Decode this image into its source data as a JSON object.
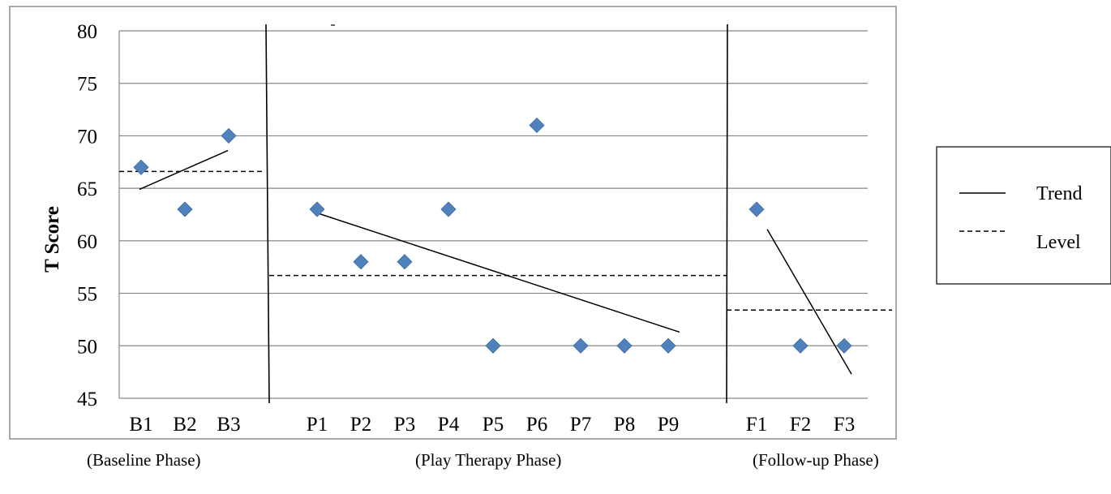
{
  "chart_data": {
    "type": "scatter",
    "ylabel": "T Score",
    "xlabel": "",
    "ylim": [
      45,
      80
    ],
    "yticks": [
      45,
      50,
      55,
      60,
      65,
      70,
      75,
      80
    ],
    "grid": true,
    "legend_position": "right",
    "categories": [
      "B1",
      "B2",
      "B3",
      "P1",
      "P2",
      "P3",
      "P4",
      "P5",
      "P6",
      "P7",
      "P8",
      "P9",
      "F1",
      "F2",
      "F3"
    ],
    "series": [
      {
        "marker": "diamond",
        "color": "#4F81BD",
        "points": [
          {
            "x": "B1",
            "y": 67
          },
          {
            "x": "B2",
            "y": 63
          },
          {
            "x": "B3",
            "y": 70
          },
          {
            "x": "P1",
            "y": 63
          },
          {
            "x": "P2",
            "y": 58
          },
          {
            "x": "P3",
            "y": 58
          },
          {
            "x": "P4",
            "y": 63
          },
          {
            "x": "P5",
            "y": 50
          },
          {
            "x": "P6",
            "y": 71
          },
          {
            "x": "P7",
            "y": 50
          },
          {
            "x": "P8",
            "y": 50
          },
          {
            "x": "P9",
            "y": 50
          },
          {
            "x": "F1",
            "y": 63
          },
          {
            "x": "F2",
            "y": 50
          },
          {
            "x": "F3",
            "y": 50
          }
        ]
      }
    ],
    "phases": [
      {
        "label": "(Baseline Phase)",
        "categories": [
          "B1",
          "B2",
          "B3"
        ],
        "trend": [
          64.9,
          68.6
        ],
        "level": 66.6
      },
      {
        "label": "(Play Therapy Phase)",
        "categories": [
          "P1",
          "P2",
          "P3",
          "P4",
          "P5",
          "P6",
          "P7",
          "P8",
          "P9"
        ],
        "trend": [
          62.8,
          51.3
        ],
        "level": 56.7
      },
      {
        "label": "(Follow-up Phase)",
        "categories": [
          "F1",
          "F2",
          "F3"
        ],
        "trend": [
          61.1,
          47.3
        ],
        "level": 53.4
      }
    ],
    "legend": [
      {
        "label": "Trend",
        "style": "solid"
      },
      {
        "label": "Level",
        "style": "dashed"
      }
    ]
  }
}
